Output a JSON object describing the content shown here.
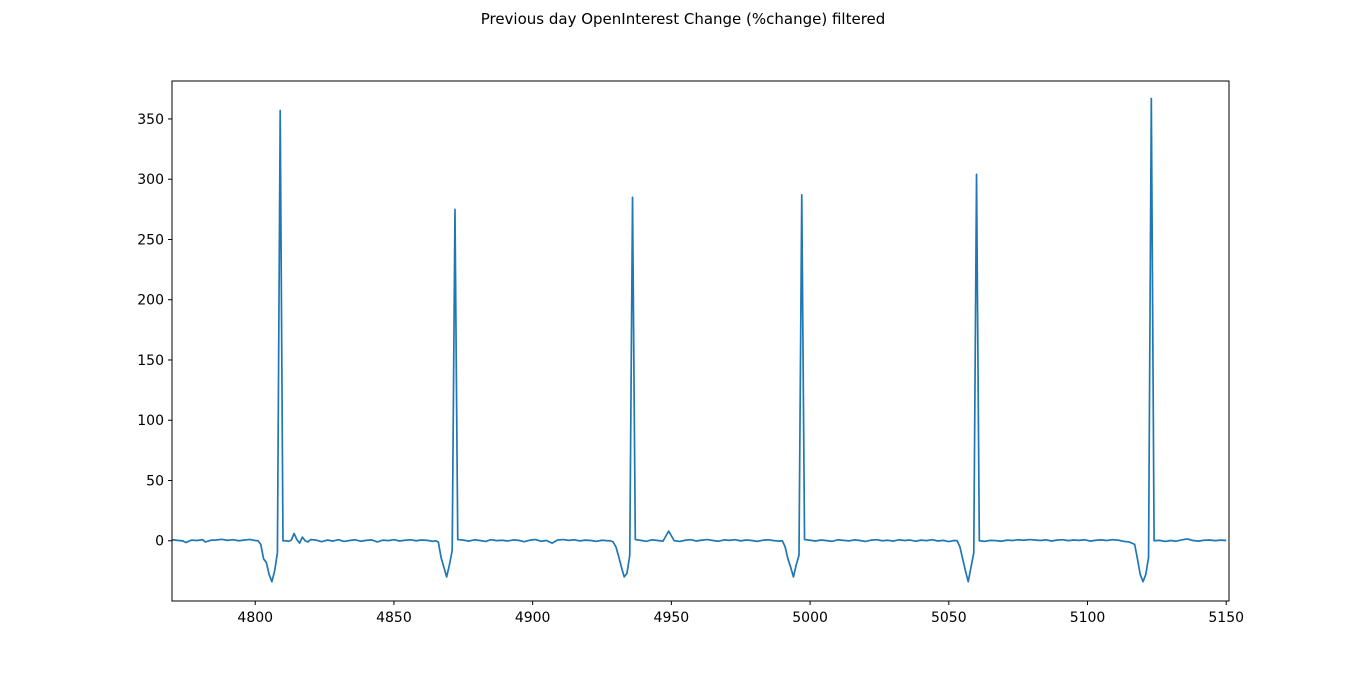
{
  "chart_data": {
    "type": "line",
    "title": "Previous day OpenInterest Change (%change) filtered",
    "x": [
      4770,
      4772,
      4774,
      4775,
      4777,
      4779,
      4781,
      4782,
      4784,
      4786,
      4788,
      4790,
      4792,
      4794,
      4796,
      4798,
      4800,
      4801,
      4802,
      4803,
      4804,
      4805,
      4806,
      4807,
      4808,
      4809,
      4810,
      4811,
      4812,
      4813,
      4814,
      4815,
      4816,
      4817,
      4818,
      4819,
      4820,
      4822,
      4824,
      4826,
      4828,
      4830,
      4832,
      4834,
      4836,
      4838,
      4840,
      4842,
      4844,
      4846,
      4848,
      4850,
      4852,
      4854,
      4856,
      4858,
      4860,
      4862,
      4864,
      4865,
      4866,
      4867,
      4868,
      4869,
      4870,
      4871,
      4872,
      4873,
      4875,
      4877,
      4879,
      4881,
      4883,
      4885,
      4887,
      4889,
      4891,
      4893,
      4895,
      4897,
      4899,
      4901,
      4903,
      4905,
      4907,
      4909,
      4911,
      4913,
      4915,
      4917,
      4919,
      4921,
      4923,
      4925,
      4927,
      4928,
      4929,
      4930,
      4931,
      4932,
      4933,
      4934,
      4935,
      4936,
      4937,
      4939,
      4941,
      4943,
      4945,
      4947,
      4949,
      4951,
      4953,
      4955,
      4957,
      4959,
      4961,
      4963,
      4965,
      4967,
      4969,
      4971,
      4973,
      4975,
      4977,
      4979,
      4981,
      4983,
      4985,
      4987,
      4989,
      4990,
      4991,
      4992,
      4993,
      4994,
      4995,
      4996,
      4997,
      4998,
      5000,
      5002,
      5004,
      5006,
      5008,
      5010,
      5012,
      5014,
      5016,
      5018,
      5020,
      5022,
      5024,
      5026,
      5028,
      5030,
      5032,
      5034,
      5036,
      5038,
      5040,
      5042,
      5044,
      5046,
      5048,
      5050,
      5052,
      5053,
      5054,
      5055,
      5056,
      5057,
      5058,
      5059,
      5060,
      5061,
      5063,
      5065,
      5067,
      5069,
      5071,
      5073,
      5075,
      5077,
      5079,
      5081,
      5083,
      5085,
      5087,
      5089,
      5091,
      5093,
      5095,
      5097,
      5099,
      5101,
      5103,
      5105,
      5107,
      5109,
      5111,
      5113,
      5115,
      5117,
      5118,
      5119,
      5120,
      5121,
      5122,
      5123,
      5124,
      5126,
      5128,
      5130,
      5132,
      5134,
      5136,
      5138,
      5140,
      5142,
      5144,
      5146,
      5148,
      5150
    ],
    "series": [
      {
        "color": "#1f77b4",
        "values": [
          0.8,
          0.3,
          -0.2,
          -1.5,
          0.5,
          0.2,
          0.9,
          -1,
          0.4,
          0.6,
          1.2,
          0.3,
          0.9,
          0,
          0.5,
          1.1,
          0.2,
          0,
          -3,
          -15,
          -18,
          -28,
          -34,
          -25,
          -10,
          357,
          0,
          0,
          -0.5,
          0.5,
          6,
          1,
          -2,
          3,
          0,
          -1,
          1,
          0.5,
          -0.8,
          0.6,
          -0.3,
          0.9,
          -0.6,
          0.2,
          0.8,
          -0.4,
          0.3,
          0.7,
          -1,
          0.5,
          0.1,
          0.9,
          -0.2,
          0.4,
          0.8,
          0,
          0.6,
          0.3,
          -0.5,
          0,
          -1,
          -14,
          -22,
          -30,
          -20,
          -8,
          275,
          1,
          0.5,
          -0.3,
          0.8,
          0.2,
          -0.6,
          0.9,
          0.1,
          0.4,
          -0.2,
          0.7,
          0.3,
          -0.8,
          0.5,
          1,
          -0.4,
          0.2,
          -2,
          0.6,
          1,
          0.3,
          0.8,
          -0.1,
          0.5,
          0.2,
          -0.5,
          0.4,
          0,
          0,
          -1,
          -5,
          -13,
          -22,
          -30,
          -27,
          -12,
          285,
          1,
          0.3,
          -0.5,
          0.8,
          0.2,
          -0.3,
          8,
          0.1,
          -0.6,
          0.4,
          0.9,
          -0.2,
          0.5,
          1,
          0.2,
          -0.4,
          0.7,
          0.3,
          0.9,
          -0.1,
          0.6,
          0.2,
          -0.5,
          0.4,
          0.8,
          0.1,
          -0.3,
          0,
          -5,
          -15,
          -22,
          -30,
          -20,
          -12,
          287,
          1,
          0.4,
          -0.2,
          0.6,
          0.1,
          -0.5,
          0.8,
          0.3,
          -0.1,
          0.7,
          0.2,
          -0.6,
          0.5,
          0.9,
          0,
          0.4,
          -0.3,
          0.8,
          0.2,
          0.6,
          -0.4,
          0.5,
          0.1,
          0.9,
          -0.2,
          0.3,
          -0.7,
          0.2,
          0,
          -5,
          -15,
          -25,
          -34,
          -22,
          -10,
          304,
          0,
          -0.5,
          0.3,
          0.1,
          -0.4,
          0.5,
          0.2,
          0.8,
          0.4,
          1,
          0.6,
          0.2,
          0.8,
          -0.2,
          0.5,
          0.9,
          0.1,
          0.6,
          0.3,
          0.8,
          -0.3,
          0.4,
          0.7,
          0.2,
          0.9,
          0.5,
          -0.5,
          -1,
          -3,
          -15,
          -28,
          -34,
          -28,
          -14,
          367,
          0,
          0.3,
          -0.6,
          0.2,
          -0.4,
          0.8,
          1.5,
          0.2,
          -0.3,
          0.4,
          0.6,
          0.1,
          0.5,
          0.2
        ]
      }
    ],
    "xlim": [
      4770,
      5151
    ],
    "ylim": [
      -50,
      381.5
    ],
    "xticks": [
      4800,
      4850,
      4900,
      4950,
      5000,
      5050,
      5100,
      5150
    ],
    "yticks": [
      0,
      50,
      100,
      150,
      200,
      250,
      300,
      350
    ],
    "grid": false
  }
}
